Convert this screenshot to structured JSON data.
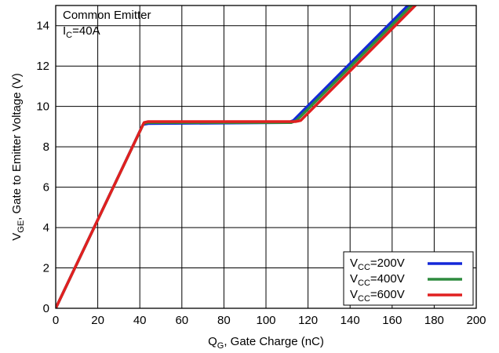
{
  "chart_data": {
    "type": "line",
    "title": "",
    "xlabel": "QG, Gate Charge (nC)",
    "ylabel": "VGE, Gate to Emitter Voltage (V)",
    "xlabel_parts": {
      "main": "Q",
      "sub": "G",
      "rest": ", Gate Charge (nC)"
    },
    "ylabel_parts": {
      "main": "V",
      "sub": "GE",
      "rest": ", Gate to Emitter Voltage (V)"
    },
    "xlim": [
      0,
      200
    ],
    "ylim": [
      0,
      15
    ],
    "x_ticks": [
      0,
      20,
      40,
      60,
      80,
      100,
      120,
      140,
      160,
      180,
      200
    ],
    "y_ticks": [
      0,
      2,
      4,
      6,
      8,
      10,
      12,
      14
    ],
    "grid": true,
    "annotations": {
      "line1": "Common Emitter",
      "line2_main": "I",
      "line2_sub": "C",
      "line2_rest": "=40A"
    },
    "legend_position": "bottom-right",
    "series": [
      {
        "name": "VCC=200V",
        "label_main": "V",
        "label_sub": "CC",
        "label_rest": "=200V",
        "color": "#1428d8",
        "x": [
          0,
          41.5,
          44,
          110.5,
          113,
          167.5
        ],
        "y": [
          0,
          9.1,
          9.15,
          9.2,
          9.3,
          15
        ]
      },
      {
        "name": "VCC=400V",
        "label_main": "V",
        "label_sub": "CC",
        "label_rest": "=400V",
        "color": "#2e8b3e",
        "x": [
          0,
          41.8,
          44,
          112,
          114.5,
          169.2
        ],
        "y": [
          0,
          9.15,
          9.2,
          9.2,
          9.3,
          15
        ]
      },
      {
        "name": "VCC=600V",
        "label_main": "V",
        "label_sub": "CC",
        "label_rest": "=600V",
        "color": "#e02020",
        "x": [
          0,
          42,
          44,
          114,
          116.5,
          171
        ],
        "y": [
          0,
          9.2,
          9.25,
          9.25,
          9.3,
          15
        ]
      }
    ]
  }
}
